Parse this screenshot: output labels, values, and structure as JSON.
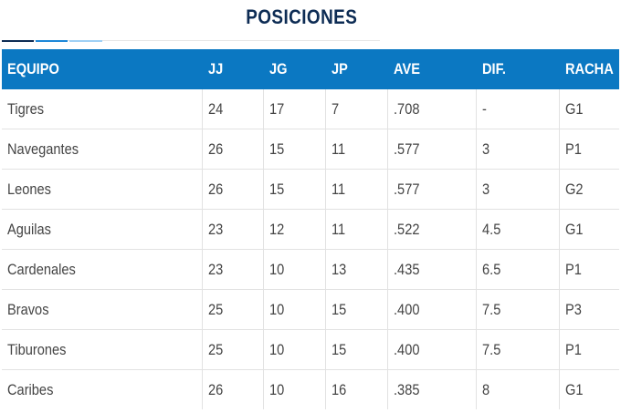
{
  "page": {
    "title": "POSICIONES"
  },
  "colors": {
    "header_bg": "#0b78c2",
    "title": "#0d2c54",
    "tab_dark": "#0d2c54",
    "tab_mid": "#1e88d8",
    "tab_light": "#9fd0f5"
  },
  "table": {
    "columns": [
      "EQUIPO",
      "JJ",
      "JG",
      "JP",
      "AVE",
      "DIF.",
      "RACHA"
    ],
    "rows": [
      [
        "Tigres",
        "24",
        "17",
        "7",
        ".708",
        "-",
        "G1"
      ],
      [
        "Navegantes",
        "26",
        "15",
        "11",
        ".577",
        "3",
        "P1"
      ],
      [
        "Leones",
        "26",
        "15",
        "11",
        ".577",
        "3",
        "G2"
      ],
      [
        "Aguilas",
        "23",
        "12",
        "11",
        ".522",
        "4.5",
        "G1"
      ],
      [
        "Cardenales",
        "23",
        "10",
        "13",
        ".435",
        "6.5",
        "P1"
      ],
      [
        "Bravos",
        "25",
        "10",
        "15",
        ".400",
        "7.5",
        "P3"
      ],
      [
        "Tiburones",
        "25",
        "10",
        "15",
        ".400",
        "7.5",
        "P1"
      ],
      [
        "Caribes",
        "26",
        "10",
        "16",
        ".385",
        "8",
        "G1"
      ]
    ]
  }
}
